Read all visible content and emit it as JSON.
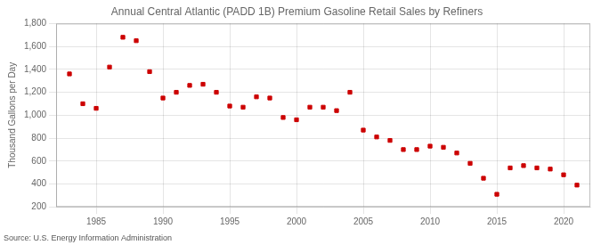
{
  "chart_data": {
    "type": "scatter",
    "title": "Annual Central Atlantic (PADD 1B) Premium Gasoline Retail Sales by Refiners",
    "ylabel": "Thousand Gallons per Day",
    "annotations": [
      "Source: U.S. Energy Information Administration"
    ],
    "x": [
      1983,
      1984,
      1985,
      1986,
      1987,
      1988,
      1989,
      1990,
      1991,
      1992,
      1993,
      1994,
      1995,
      1996,
      1997,
      1998,
      1999,
      2000,
      2001,
      2002,
      2003,
      2004,
      2005,
      2006,
      2007,
      2008,
      2009,
      2010,
      2011,
      2012,
      2013,
      2014,
      2015,
      2016,
      2017,
      2018,
      2019,
      2020,
      2021
    ],
    "values": [
      1360,
      1100,
      1060,
      1420,
      1680,
      1650,
      1380,
      1150,
      1200,
      1260,
      1270,
      1200,
      1080,
      1070,
      1160,
      1150,
      980,
      960,
      1070,
      1070,
      1040,
      1200,
      870,
      810,
      780,
      700,
      700,
      730,
      720,
      670,
      580,
      450,
      310,
      540,
      560,
      540,
      530,
      480,
      390
    ],
    "color": "#cc0000",
    "marker": "square",
    "xlim": [
      1982,
      2022
    ],
    "ylim": [
      200,
      1800
    ],
    "xticks": [
      1985,
      1990,
      1995,
      2000,
      2005,
      2010,
      2015,
      2020
    ],
    "yticks": [
      200,
      400,
      600,
      800,
      {
        "value": 1000,
        "label": "1,000"
      },
      {
        "value": 1200,
        "label": "1,200"
      },
      {
        "value": 1400,
        "label": "1,400"
      },
      {
        "value": 1600,
        "label": "1,600"
      },
      {
        "value": 1800,
        "label": "1,800"
      }
    ],
    "grid": true
  }
}
